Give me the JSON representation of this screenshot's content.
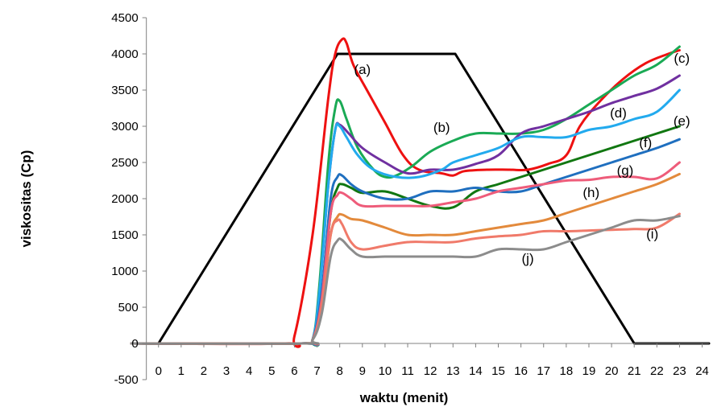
{
  "chart_data": {
    "type": "line",
    "xlabel": "waktu (menit)",
    "ylabel": "viskositas (Cp)",
    "xlim": [
      -1.2,
      24.3
    ],
    "ylim": [
      -500,
      4500
    ],
    "x_ticks": [
      "0",
      "1",
      "2",
      "3",
      "4",
      "5",
      "6",
      "7",
      "8",
      "9",
      "10",
      "11",
      "12",
      "13",
      "14",
      "15",
      "16",
      "17",
      "18",
      "19",
      "20",
      "21",
      "22",
      "23",
      "24"
    ],
    "y_ticks": [
      "4500",
      "4000",
      "3500",
      "3000",
      "2500",
      "2000",
      "1500",
      "1000",
      "500",
      "0",
      "-500"
    ],
    "grid": false,
    "legend": "none",
    "series": [
      {
        "color": "#000000",
        "points": [
          [
            0,
            0
          ],
          [
            7.9,
            4000
          ],
          [
            13.1,
            4000
          ],
          [
            21,
            0
          ],
          [
            24.3,
            0
          ]
        ]
      },
      {
        "label": "(a)",
        "color": "#ee1111",
        "points": [
          [
            -1.2,
            0
          ],
          [
            5.6,
            0
          ],
          [
            6.0,
            100
          ],
          [
            6.8,
            1500
          ],
          [
            7.5,
            3400
          ],
          [
            7.8,
            4000
          ],
          [
            8.1,
            4200
          ],
          [
            8.3,
            4150
          ],
          [
            8.6,
            3850
          ],
          [
            9.2,
            3500
          ],
          [
            10.0,
            3050
          ],
          [
            10.8,
            2600
          ],
          [
            11.5,
            2400
          ],
          [
            12.5,
            2350
          ],
          [
            13.0,
            2320
          ],
          [
            13.5,
            2380
          ],
          [
            14.5,
            2400
          ],
          [
            15.5,
            2400
          ],
          [
            16.3,
            2400
          ],
          [
            17.2,
            2480
          ],
          [
            18.0,
            2600
          ],
          [
            18.6,
            3000
          ],
          [
            19.5,
            3350
          ],
          [
            20.5,
            3650
          ],
          [
            21.5,
            3870
          ],
          [
            22.5,
            4000
          ],
          [
            23.0,
            4050
          ]
        ]
      },
      {
        "label": "(b)",
        "color": "#1aaa55",
        "points": [
          [
            -1.2,
            0
          ],
          [
            6.3,
            0
          ],
          [
            6.8,
            50
          ],
          [
            7.1,
            800
          ],
          [
            7.5,
            2500
          ],
          [
            7.8,
            3250
          ],
          [
            8.0,
            3350
          ],
          [
            8.3,
            3100
          ],
          [
            8.8,
            2700
          ],
          [
            9.5,
            2400
          ],
          [
            10.0,
            2300
          ],
          [
            10.5,
            2320
          ],
          [
            11.2,
            2450
          ],
          [
            12.0,
            2650
          ],
          [
            13.0,
            2800
          ],
          [
            14.0,
            2900
          ],
          [
            15.0,
            2900
          ],
          [
            16.0,
            2900
          ],
          [
            17.0,
            2950
          ],
          [
            18.0,
            3100
          ],
          [
            19.0,
            3300
          ],
          [
            20.0,
            3500
          ],
          [
            21.0,
            3700
          ],
          [
            22.0,
            3850
          ],
          [
            23.0,
            4100
          ]
        ]
      },
      {
        "label": "(c)",
        "color": "#7030a0",
        "points": [
          [
            -1.2,
            0
          ],
          [
            6.3,
            0
          ],
          [
            6.8,
            50
          ],
          [
            7.1,
            700
          ],
          [
            7.5,
            2200
          ],
          [
            7.8,
            2950
          ],
          [
            8.0,
            3020
          ],
          [
            8.4,
            2900
          ],
          [
            9.0,
            2700
          ],
          [
            10.0,
            2500
          ],
          [
            11.0,
            2350
          ],
          [
            12.0,
            2400
          ],
          [
            13.0,
            2400
          ],
          [
            14.0,
            2480
          ],
          [
            15.0,
            2600
          ],
          [
            16.0,
            2900
          ],
          [
            17.0,
            3000
          ],
          [
            18.0,
            3100
          ],
          [
            19.0,
            3200
          ],
          [
            20.0,
            3320
          ],
          [
            21.0,
            3420
          ],
          [
            22.0,
            3520
          ],
          [
            23.0,
            3700
          ]
        ]
      },
      {
        "label": "(d)",
        "color": "#22aaee",
        "points": [
          [
            -1.2,
            0
          ],
          [
            6.3,
            0
          ],
          [
            6.8,
            50
          ],
          [
            7.1,
            700
          ],
          [
            7.5,
            2200
          ],
          [
            7.8,
            2950
          ],
          [
            8.0,
            3000
          ],
          [
            8.3,
            2850
          ],
          [
            8.8,
            2600
          ],
          [
            9.5,
            2400
          ],
          [
            10.5,
            2300
          ],
          [
            11.5,
            2300
          ],
          [
            12.5,
            2400
          ],
          [
            13.0,
            2500
          ],
          [
            14.0,
            2600
          ],
          [
            15.0,
            2700
          ],
          [
            16.0,
            2850
          ],
          [
            17.0,
            2850
          ],
          [
            18.0,
            2850
          ],
          [
            19.0,
            2950
          ],
          [
            20.0,
            3000
          ],
          [
            21.0,
            3100
          ],
          [
            22.0,
            3200
          ],
          [
            23.0,
            3500
          ]
        ]
      },
      {
        "label": "(e)",
        "color": "#117711",
        "points": [
          [
            -1.2,
            0
          ],
          [
            6.3,
            0
          ],
          [
            6.8,
            50
          ],
          [
            7.2,
            600
          ],
          [
            7.6,
            1800
          ],
          [
            7.9,
            2150
          ],
          [
            8.1,
            2200
          ],
          [
            8.5,
            2150
          ],
          [
            9.0,
            2080
          ],
          [
            10.0,
            2100
          ],
          [
            11.0,
            2000
          ],
          [
            12.0,
            1900
          ],
          [
            13.0,
            1880
          ],
          [
            14.0,
            2100
          ],
          [
            15.0,
            2200
          ],
          [
            16.0,
            2300
          ],
          [
            17.0,
            2400
          ],
          [
            18.0,
            2500
          ],
          [
            19.0,
            2600
          ],
          [
            20.0,
            2700
          ],
          [
            21.0,
            2800
          ],
          [
            22.0,
            2900
          ],
          [
            23.0,
            3000
          ]
        ]
      },
      {
        "label": "(f)",
        "color": "#1f6fbf",
        "points": [
          [
            -1.2,
            0
          ],
          [
            6.3,
            0
          ],
          [
            6.8,
            50
          ],
          [
            7.2,
            700
          ],
          [
            7.6,
            2000
          ],
          [
            7.9,
            2300
          ],
          [
            8.1,
            2320
          ],
          [
            8.5,
            2200
          ],
          [
            9.0,
            2100
          ],
          [
            10.0,
            2000
          ],
          [
            11.0,
            2000
          ],
          [
            12.0,
            2100
          ],
          [
            13.0,
            2100
          ],
          [
            14.0,
            2150
          ],
          [
            15.0,
            2100
          ],
          [
            16.0,
            2100
          ],
          [
            17.0,
            2200
          ],
          [
            18.0,
            2300
          ],
          [
            19.0,
            2400
          ],
          [
            20.0,
            2500
          ],
          [
            21.0,
            2600
          ],
          [
            22.0,
            2700
          ],
          [
            23.0,
            2820
          ]
        ]
      },
      {
        "label": "(g)",
        "color": "#ee5c7a",
        "points": [
          [
            -1.2,
            0
          ],
          [
            6.3,
            0
          ],
          [
            6.8,
            50
          ],
          [
            7.2,
            600
          ],
          [
            7.6,
            1800
          ],
          [
            7.9,
            2050
          ],
          [
            8.1,
            2080
          ],
          [
            8.5,
            2000
          ],
          [
            9.0,
            1900
          ],
          [
            10.0,
            1900
          ],
          [
            11.0,
            1900
          ],
          [
            12.0,
            1900
          ],
          [
            13.0,
            1950
          ],
          [
            14.0,
            2000
          ],
          [
            15.0,
            2100
          ],
          [
            16.0,
            2150
          ],
          [
            17.0,
            2200
          ],
          [
            18.0,
            2250
          ],
          [
            19.0,
            2260
          ],
          [
            20.0,
            2300
          ],
          [
            21.0,
            2300
          ],
          [
            22.0,
            2280
          ],
          [
            23.0,
            2500
          ]
        ]
      },
      {
        "label": "(h)",
        "color": "#e38a3c",
        "points": [
          [
            -1.2,
            0
          ],
          [
            6.3,
            0
          ],
          [
            6.8,
            50
          ],
          [
            7.2,
            500
          ],
          [
            7.6,
            1500
          ],
          [
            7.9,
            1750
          ],
          [
            8.1,
            1780
          ],
          [
            8.5,
            1720
          ],
          [
            9.0,
            1700
          ],
          [
            10.0,
            1600
          ],
          [
            11.0,
            1500
          ],
          [
            12.0,
            1500
          ],
          [
            13.0,
            1500
          ],
          [
            14.0,
            1550
          ],
          [
            15.0,
            1600
          ],
          [
            16.0,
            1650
          ],
          [
            17.0,
            1700
          ],
          [
            18.0,
            1800
          ],
          [
            19.0,
            1900
          ],
          [
            20.0,
            2000
          ],
          [
            21.0,
            2100
          ],
          [
            22.0,
            2200
          ],
          [
            23.0,
            2340
          ]
        ]
      },
      {
        "label": "(i)",
        "color": "#f07a6a",
        "points": [
          [
            -1.2,
            0
          ],
          [
            6.3,
            0
          ],
          [
            6.8,
            50
          ],
          [
            7.2,
            500
          ],
          [
            7.6,
            1500
          ],
          [
            7.9,
            1700
          ],
          [
            8.1,
            1650
          ],
          [
            8.5,
            1400
          ],
          [
            9.0,
            1300
          ],
          [
            10.0,
            1350
          ],
          [
            11.0,
            1400
          ],
          [
            12.0,
            1400
          ],
          [
            13.0,
            1400
          ],
          [
            14.0,
            1450
          ],
          [
            15.0,
            1480
          ],
          [
            16.0,
            1500
          ],
          [
            17.0,
            1550
          ],
          [
            18.0,
            1550
          ],
          [
            19.0,
            1560
          ],
          [
            20.0,
            1570
          ],
          [
            21.0,
            1580
          ],
          [
            22.0,
            1600
          ],
          [
            23.0,
            1790
          ]
        ]
      },
      {
        "label": "(j)",
        "color": "#8c8c8c",
        "points": [
          [
            -1.2,
            0
          ],
          [
            6.3,
            0
          ],
          [
            6.8,
            50
          ],
          [
            7.2,
            400
          ],
          [
            7.6,
            1200
          ],
          [
            7.9,
            1420
          ],
          [
            8.1,
            1430
          ],
          [
            8.5,
            1300
          ],
          [
            9.0,
            1200
          ],
          [
            10.0,
            1200
          ],
          [
            11.0,
            1200
          ],
          [
            12.0,
            1200
          ],
          [
            13.0,
            1200
          ],
          [
            14.0,
            1200
          ],
          [
            15.0,
            1300
          ],
          [
            16.0,
            1300
          ],
          [
            17.0,
            1300
          ],
          [
            18.0,
            1400
          ],
          [
            19.0,
            1500
          ],
          [
            20.0,
            1600
          ],
          [
            21.0,
            1700
          ],
          [
            22.0,
            1700
          ],
          [
            23.0,
            1760
          ]
        ]
      }
    ],
    "annotations": [
      {
        "text": "(a)",
        "x": 9.0,
        "y": 3720
      },
      {
        "text": "(b)",
        "x": 12.5,
        "y": 2920
      },
      {
        "text": "(c)",
        "x": 23.1,
        "y": 3880
      },
      {
        "text": "(d)",
        "x": 20.3,
        "y": 3120
      },
      {
        "text": "(e)",
        "x": 23.1,
        "y": 3010
      },
      {
        "text": "(f)",
        "x": 21.5,
        "y": 2710
      },
      {
        "text": "(g)",
        "x": 20.6,
        "y": 2330
      },
      {
        "text": "(h)",
        "x": 19.1,
        "y": 2020
      },
      {
        "text": "(i)",
        "x": 21.8,
        "y": 1450
      },
      {
        "text": "(j)",
        "x": 16.3,
        "y": 1110
      }
    ]
  }
}
